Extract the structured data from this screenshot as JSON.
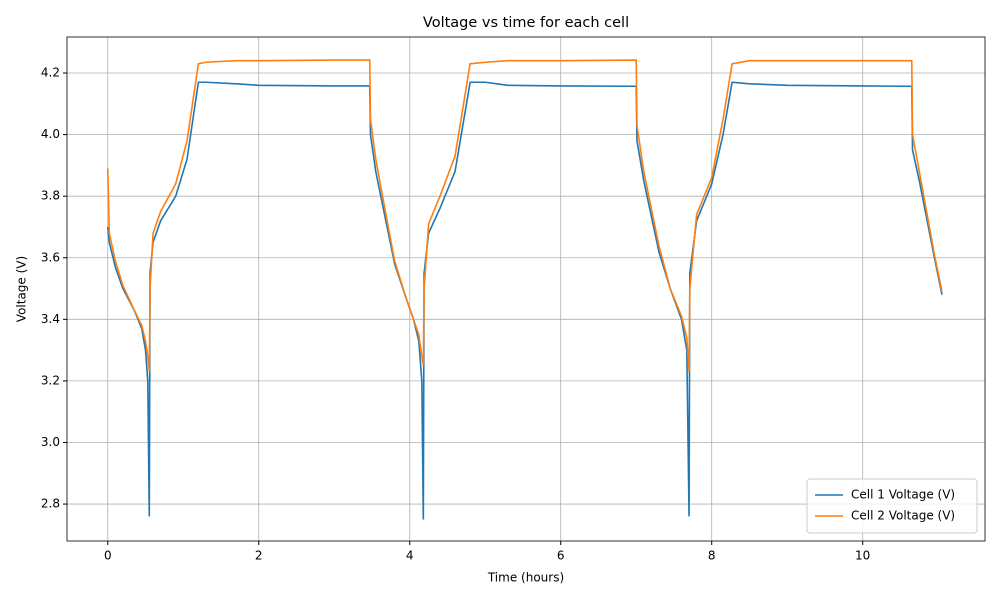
{
  "chart_data": {
    "type": "line",
    "title": "Voltage vs time for each cell",
    "x_label": "Time (hours)",
    "y_label": "Voltage (V)",
    "x": [
      0,
      0.02,
      0.1,
      0.2,
      0.35,
      0.45,
      0.5,
      0.53,
      0.55,
      0.56,
      0.6,
      0.7,
      0.9,
      1.05,
      1.2,
      1.3,
      1.7,
      2.0,
      3.0,
      3.47,
      3.48,
      3.55,
      3.7,
      3.8,
      3.95,
      4.05,
      4.12,
      4.16,
      4.18,
      4.19,
      4.25,
      4.4,
      4.6,
      4.8,
      5.0,
      5.3,
      6.0,
      7.0,
      7.01,
      7.1,
      7.3,
      7.45,
      7.6,
      7.67,
      7.7,
      7.71,
      7.8,
      8.0,
      8.15,
      8.27,
      8.5,
      9.0,
      10.0,
      10.65,
      10.66,
      10.75,
      10.95,
      11.05
    ],
    "series": [
      {
        "name": "Cell 1 Voltage (V)",
        "color": "#1f77b4",
        "values": [
          3.7,
          3.65,
          3.57,
          3.5,
          3.43,
          3.37,
          3.3,
          3.2,
          2.76,
          3.55,
          3.65,
          3.72,
          3.8,
          3.92,
          4.17,
          4.17,
          4.165,
          4.16,
          4.158,
          4.158,
          4.0,
          3.88,
          3.7,
          3.58,
          3.47,
          3.4,
          3.33,
          3.2,
          2.75,
          3.55,
          3.68,
          3.76,
          3.88,
          4.17,
          4.17,
          4.16,
          4.158,
          4.157,
          3.98,
          3.85,
          3.62,
          3.5,
          3.4,
          3.3,
          2.76,
          3.55,
          3.72,
          3.84,
          4.0,
          4.17,
          4.165,
          4.16,
          4.158,
          4.157,
          3.95,
          3.85,
          3.6,
          3.48
        ]
      },
      {
        "name": "Cell 2 Voltage (V)",
        "color": "#ff7f0e",
        "values": [
          3.89,
          3.68,
          3.59,
          3.51,
          3.43,
          3.38,
          3.33,
          3.28,
          3.23,
          3.5,
          3.68,
          3.75,
          3.84,
          3.98,
          4.23,
          4.235,
          4.24,
          4.24,
          4.242,
          4.242,
          4.05,
          3.92,
          3.72,
          3.59,
          3.47,
          3.4,
          3.35,
          3.28,
          3.25,
          3.5,
          3.71,
          3.8,
          3.93,
          4.23,
          4.235,
          4.24,
          4.24,
          4.242,
          4.03,
          3.88,
          3.64,
          3.5,
          3.41,
          3.34,
          3.23,
          3.5,
          3.74,
          3.86,
          4.05,
          4.23,
          4.24,
          4.24,
          4.24,
          4.24,
          4.0,
          3.88,
          3.61,
          3.49
        ]
      }
    ],
    "xlim": [
      -0.54,
      11.62
    ],
    "ylim": [
      2.68,
      4.317
    ],
    "xticks": [
      0,
      2,
      4,
      6,
      8,
      10
    ],
    "yticks": [
      {
        "value": 2.8,
        "label": "2.8"
      },
      {
        "value": 3.0,
        "label": "3.0"
      },
      {
        "value": 3.2,
        "label": "3.2"
      },
      {
        "value": 3.4,
        "label": "3.4"
      },
      {
        "value": 3.6,
        "label": "3.6"
      },
      {
        "value": 3.8,
        "label": "3.8"
      },
      {
        "value": 4.0,
        "label": "4.0"
      },
      {
        "value": 4.2,
        "label": "4.2"
      }
    ],
    "grid": true,
    "legend": "lower right"
  }
}
